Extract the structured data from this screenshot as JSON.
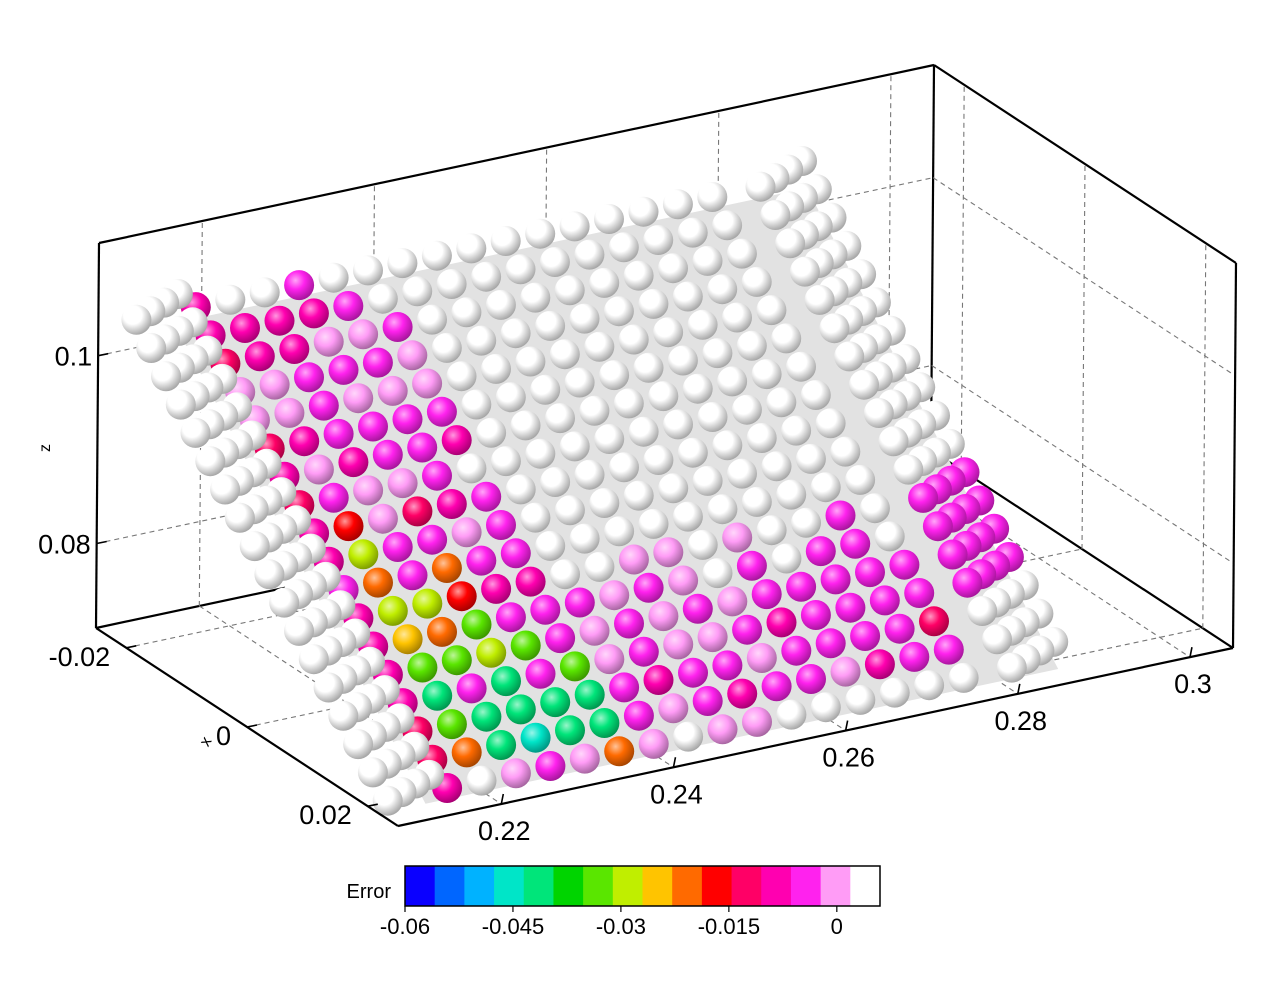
{
  "chart_data": {
    "type": "scatter",
    "projection": "3d",
    "axes": {
      "x": {
        "label": "x",
        "ticks": [
          "-0.02",
          "0",
          "0.02"
        ],
        "range": [
          -0.025,
          0.025
        ]
      },
      "y": {
        "label": "",
        "ticks": [
          "0.22",
          "0.24",
          "0.26",
          "0.28",
          "0.3"
        ],
        "range": [
          0.208,
          0.305
        ]
      },
      "z": {
        "label": "z",
        "ticks": [
          "0.08",
          "0.1"
        ],
        "range": [
          0.071,
          0.112
        ]
      }
    },
    "grid": true,
    "surface": {
      "description": "flat sloped plate",
      "color": "#e2e2e2"
    },
    "colorbar": {
      "title": "Error",
      "tick_labels": [
        "-0.06",
        "-0.045",
        "-0.03",
        "-0.015",
        "0"
      ],
      "tick_values": [
        -0.06,
        -0.045,
        -0.03,
        -0.015,
        0
      ],
      "range": [
        -0.06,
        0.006
      ],
      "colors": [
        "#0a00ff",
        "#0066ff",
        "#00b2ff",
        "#00e5c8",
        "#00e57a",
        "#00d400",
        "#5ae600",
        "#c0ee00",
        "#ffc400",
        "#ff6a00",
        "#ff0000",
        "#ff0066",
        "#ff00b0",
        "#ff22ee",
        "#ff9cf6",
        "#ffffff"
      ]
    },
    "rows": [
      {
        "y": 0.212,
        "n": 18,
        "width": 4,
        "series": [
          0.004,
          0.004,
          0.003,
          0.004,
          0.004,
          0.003,
          0.004,
          0.003,
          0.004,
          0.004,
          0.003,
          0.004,
          0.003,
          0.004,
          0.004,
          0.003,
          0.004,
          0.003
        ]
      },
      {
        "y": 0.2165,
        "n": 18,
        "width": 1,
        "series": [
          -0.008,
          -0.009,
          -0.011,
          -0.002,
          -0.001,
          -0.013,
          -0.01,
          -0.013,
          -0.007,
          -0.009,
          -0.005,
          -0.01,
          -0.008,
          -0.009,
          -0.01,
          -0.012,
          -0.012,
          -0.01
        ]
      },
      {
        "y": 0.2205,
        "n": 18,
        "width": 1,
        "series": [
          0.003,
          -0.009,
          -0.008,
          -0.001,
          0.001,
          -0.009,
          0.0,
          -0.003,
          -0.017,
          -0.028,
          -0.022,
          -0.03,
          -0.026,
          -0.035,
          -0.04,
          -0.032,
          -0.02,
          0.002
        ]
      },
      {
        "y": 0.2245,
        "n": 18,
        "width": 1,
        "series": [
          0.003,
          -0.007,
          -0.007,
          -0.005,
          -0.006,
          -0.003,
          -0.007,
          0.001,
          -0.002,
          -0.004,
          -0.006,
          -0.028,
          -0.022,
          -0.035,
          -0.004,
          -0.04,
          -0.04,
          0.0
        ]
      },
      {
        "y": 0.2285,
        "n": 18,
        "width": 1,
        "series": [
          -0.005,
          -0.009,
          -0.002,
          -0.004,
          -0.002,
          -0.004,
          -0.005,
          0.001,
          -0.011,
          -0.004,
          -0.02,
          -0.018,
          -0.035,
          -0.03,
          -0.04,
          -0.042,
          -0.045,
          -0.003
        ]
      },
      {
        "y": 0.2325,
        "n": 18,
        "width": 1,
        "series": [
          0.002,
          -0.004,
          -0.002,
          -0.004,
          -0.002,
          -0.004,
          -0.006,
          -0.004,
          -0.007,
          0.001,
          -0.004,
          -0.008,
          -0.005,
          -0.035,
          -0.005,
          -0.04,
          -0.042,
          0.0
        ]
      },
      {
        "y": 0.2365,
        "n": 18,
        "width": 1,
        "series": [
          0.002,
          0.002,
          -0.004,
          -0.002,
          0.001,
          -0.004,
          -0.008,
          0.002,
          -0.006,
          -0.004,
          -0.003,
          -0.009,
          -0.005,
          -0.004,
          -0.035,
          -0.04,
          -0.042,
          -0.02
        ]
      },
      {
        "y": 0.2405,
        "n": 18,
        "width": 1,
        "series": [
          0.003,
          0.002,
          0.004,
          0.002,
          0.003,
          0.002,
          0.002,
          0.003,
          0.002,
          0.003,
          0.002,
          0.002,
          -0.004,
          -0.002,
          -0.002,
          -0.004,
          -0.003,
          0.001
        ]
      },
      {
        "y": 0.2445,
        "n": 18,
        "width": 1,
        "series": [
          0.002,
          0.003,
          0.002,
          0.003,
          0.004,
          0.003,
          0.004,
          0.002,
          0.003,
          0.002,
          0.006,
          0.003,
          -0.002,
          -0.004,
          -0.004,
          -0.008,
          -0.002,
          0.002
        ]
      },
      {
        "y": 0.2485,
        "n": 18,
        "width": 1,
        "series": [
          0.003,
          0.002,
          0.004,
          0.006,
          0.004,
          0.005,
          0.003,
          0.004,
          0.002,
          0.003,
          0.002,
          0.001,
          -0.004,
          -0.002,
          -0.002,
          -0.006,
          -0.004,
          -0.002
        ]
      },
      {
        "y": 0.2525,
        "n": 18,
        "width": 1,
        "series": [
          0.003,
          0.004,
          0.002,
          0.004,
          0.005,
          0.004,
          0.005,
          0.003,
          0.002,
          0.002,
          0.002,
          0.001,
          -0.002,
          -0.004,
          -0.001,
          -0.004,
          -0.009,
          -0.002
        ]
      },
      {
        "y": 0.2565,
        "n": 18,
        "width": 1,
        "series": [
          0.002,
          0.003,
          0.003,
          0.004,
          0.005,
          0.004,
          0.004,
          0.005,
          0.003,
          0.004,
          0.002,
          0.003,
          0.002,
          0.001,
          -0.004,
          -0.002,
          -0.003,
          0.002
        ]
      },
      {
        "y": 0.2605,
        "n": 18,
        "width": 1,
        "series": [
          0.004,
          0.003,
          0.003,
          0.002,
          0.004,
          0.004,
          0.005,
          0.004,
          0.003,
          0.002,
          0.003,
          0.001,
          -0.004,
          -0.005,
          -0.009,
          -0.004,
          -0.003,
          0.002
        ]
      },
      {
        "y": 0.2645,
        "n": 18,
        "width": 1,
        "series": [
          0.003,
          0.002,
          0.004,
          0.003,
          0.002,
          0.004,
          0.003,
          0.002,
          0.003,
          0.002,
          0.003,
          0.003,
          0.002,
          -0.004,
          -0.004,
          -0.006,
          -0.002,
          0.002
        ]
      },
      {
        "y": 0.2685,
        "n": 18,
        "width": 1,
        "series": [
          0.003,
          0.002,
          0.003,
          0.002,
          0.004,
          0.003,
          0.004,
          0.003,
          0.004,
          0.003,
          0.002,
          0.003,
          -0.004,
          -0.003,
          -0.006,
          -0.003,
          -0.01,
          0.002
        ]
      },
      {
        "y": 0.2725,
        "n": 18,
        "width": 1,
        "series": [
          0.002,
          0.003,
          0.002,
          0.003,
          0.004,
          0.005,
          0.004,
          0.003,
          0.002,
          0.003,
          0.002,
          -0.003,
          -0.005,
          -0.004,
          -0.003,
          -0.004,
          -0.004,
          0.002
        ]
      },
      {
        "y": 0.2765,
        "n": 18,
        "width": 1,
        "series": [
          0.004,
          0.003,
          0.003,
          0.004,
          0.003,
          0.004,
          0.003,
          0.003,
          0.002,
          0.002,
          0.003,
          0.002,
          0.003,
          -0.004,
          -0.005,
          -0.012,
          -0.006,
          0.003
        ]
      },
      {
        "y": 0.2845,
        "n": 18,
        "width": 4,
        "series": [
          0.003,
          0.003,
          0.004,
          0.003,
          0.004,
          0.003,
          0.004,
          0.003,
          0.003,
          0.002,
          0.003,
          -0.004,
          -0.005,
          -0.004,
          -0.003,
          0.002,
          0.003,
          0.003
        ]
      }
    ]
  }
}
